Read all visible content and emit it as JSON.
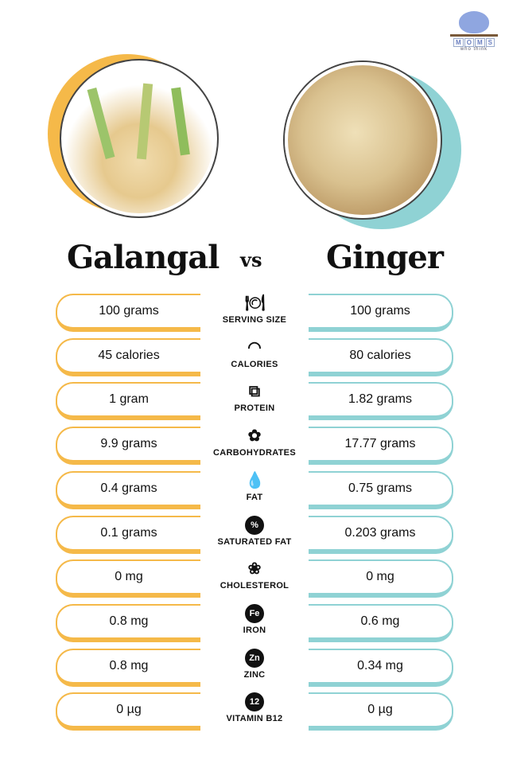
{
  "logo": {
    "letters": [
      "M",
      "O",
      "M",
      "S"
    ],
    "subtitle": "who think"
  },
  "left_title": "Galangal",
  "vs": "vs",
  "right_title": "Ginger",
  "colors": {
    "galangal": "#f5b949",
    "ginger": "#8fd2d4"
  },
  "rows": [
    {
      "label": "SERVING SIZE",
      "icon": "utensils-plate-icon",
      "glyph": "🍽",
      "galangal": "100 grams",
      "ginger": "100 grams"
    },
    {
      "label": "CALORIES",
      "icon": "gauge-icon",
      "glyph": "◠",
      "galangal": "45 calories",
      "ginger": "80 calories"
    },
    {
      "label": "PROTEIN",
      "icon": "protein-strand-icon",
      "glyph": "⧉",
      "galangal": "1 gram",
      "ginger": "1.82 grams"
    },
    {
      "label": "CARBOHYDRATES",
      "icon": "wheat-icon",
      "glyph": "✿",
      "galangal": "9.9 grams",
      "ginger": "17.77 grams"
    },
    {
      "label": "FAT",
      "icon": "droplet-icon",
      "glyph": "💧",
      "galangal": "0.4 grams",
      "ginger": "0.75 grams"
    },
    {
      "label": "SATURATED FAT",
      "icon": "percent-drop-icon",
      "glyph": "%",
      "galangal": "0.1 grams",
      "ginger": "0.203 grams"
    },
    {
      "label": "CHOLESTEROL",
      "icon": "cholesterol-molecule-icon",
      "glyph": "❀",
      "galangal": "0 mg",
      "ginger": "0 mg"
    },
    {
      "label": "IRON",
      "icon": "iron-fe-icon",
      "glyph": "Fe",
      "galangal": "0.8 mg",
      "ginger": "0.6 mg"
    },
    {
      "label": "ZINC",
      "icon": "zinc-zn-icon",
      "glyph": "Zn",
      "galangal": "0.8 mg",
      "ginger": "0.34 mg"
    },
    {
      "label": "VITAMIN B12",
      "icon": "vitamin-b12-icon",
      "glyph": "12",
      "galangal": "0 µg",
      "ginger": "0 µg"
    }
  ]
}
